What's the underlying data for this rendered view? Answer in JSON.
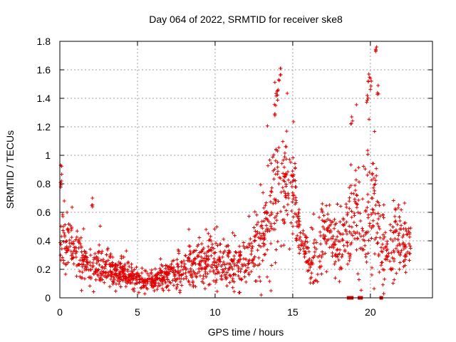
{
  "chart_data": {
    "type": "scatter",
    "title": "Day 064 of 2022, SRMTID for receiver ske8",
    "xlabel": "GPS time / hours",
    "ylabel": "SRMTID / TECUs",
    "xlim": [
      0,
      24
    ],
    "ylim": [
      0,
      1.8
    ],
    "xticks": [
      0,
      5,
      10,
      15,
      20
    ],
    "xtick_labels": [
      "0",
      "5",
      "10",
      "15",
      "20"
    ],
    "yticks": [
      0,
      0.2,
      0.4,
      0.6,
      0.8,
      1.0,
      1.2,
      1.4,
      1.6,
      1.8
    ],
    "ytick_labels": [
      "0",
      "0.2",
      "0.4",
      "0.6",
      "0.8",
      "1",
      "1.2",
      "1.4",
      "1.6",
      "1.8"
    ],
    "grid": true,
    "marker": "+",
    "color": "#e00000",
    "envelope": {
      "description": "approximate typical level (median) and spread of SRMTID versus time",
      "x": [
        0.0,
        0.3,
        1.0,
        2.0,
        3.0,
        4.0,
        5.0,
        5.5,
        6.0,
        7.0,
        8.0,
        9.0,
        10.0,
        11.0,
        12.0,
        12.8,
        13.5,
        14.0,
        14.5,
        15.0,
        15.5,
        16.0,
        16.5,
        17.0,
        17.5,
        18.0,
        18.5,
        19.0,
        19.5,
        20.0,
        20.3,
        20.6,
        21.0,
        21.5,
        22.0,
        22.6
      ],
      "median": [
        0.45,
        0.38,
        0.32,
        0.22,
        0.2,
        0.17,
        0.13,
        0.1,
        0.13,
        0.16,
        0.18,
        0.24,
        0.27,
        0.22,
        0.25,
        0.35,
        0.55,
        0.8,
        0.78,
        0.7,
        0.5,
        0.25,
        0.3,
        0.45,
        0.42,
        0.4,
        0.45,
        0.55,
        0.45,
        0.55,
        0.7,
        0.4,
        0.35,
        0.38,
        0.4,
        0.42
      ],
      "spread": [
        0.25,
        0.12,
        0.1,
        0.08,
        0.07,
        0.06,
        0.04,
        0.04,
        0.05,
        0.07,
        0.08,
        0.09,
        0.1,
        0.09,
        0.1,
        0.15,
        0.25,
        0.35,
        0.22,
        0.18,
        0.15,
        0.1,
        0.15,
        0.15,
        0.14,
        0.14,
        0.18,
        0.3,
        0.18,
        0.3,
        0.35,
        0.2,
        0.12,
        0.13,
        0.13,
        0.13
      ]
    },
    "sample_count": 1600,
    "peaks": [
      {
        "x": 0.05,
        "y": 0.93
      },
      {
        "x": 0.1,
        "y": 0.82
      },
      {
        "x": 2.1,
        "y": 0.7
      },
      {
        "x": 14.1,
        "y": 1.53
      },
      {
        "x": 14.2,
        "y": 1.61
      },
      {
        "x": 14.0,
        "y": 1.45
      },
      {
        "x": 13.9,
        "y": 1.35
      },
      {
        "x": 18.8,
        "y": 1.27
      },
      {
        "x": 19.9,
        "y": 1.57
      },
      {
        "x": 20.0,
        "y": 1.54
      },
      {
        "x": 20.4,
        "y": 1.76
      },
      {
        "x": 20.5,
        "y": 1.49
      },
      {
        "x": 19.8,
        "y": 1.42
      }
    ],
    "zero_markers": [
      18.6,
      18.8,
      19.3,
      19.4,
      20.7
    ]
  }
}
